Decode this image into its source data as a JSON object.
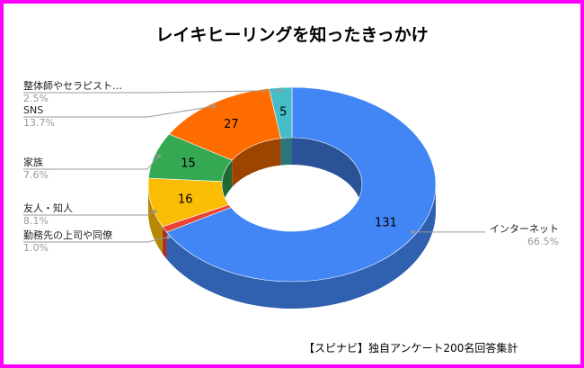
{
  "chart_data": {
    "type": "pie",
    "title": "レイキヒーリングを知ったきっかけ",
    "source": "【スピナビ】独自アンケート200名回答集計",
    "slices": [
      {
        "label": "インターネット",
        "value": 131,
        "percent": "66.5%",
        "color": "#4285f4"
      },
      {
        "label": "勤務先の上司や同僚",
        "value": 2,
        "percent": "1.0%",
        "color": "#ea4335"
      },
      {
        "label": "友人・知人",
        "value": 16,
        "percent": "8.1%",
        "color": "#fbbc04"
      },
      {
        "label": "家族",
        "value": 15,
        "percent": "7.6%",
        "color": "#34a853"
      },
      {
        "label": "SNS",
        "value": 27,
        "percent": "13.7%",
        "color": "#ff6d01"
      },
      {
        "label": "整体師やセラピスト…",
        "value": 5,
        "percent": "2.5%",
        "color": "#46bdc6"
      }
    ]
  }
}
